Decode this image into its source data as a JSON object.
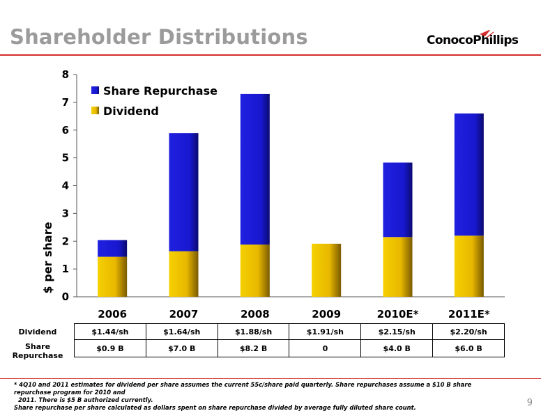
{
  "header": {
    "title": "Shareholder Distributions",
    "logo_text": "ConocoPhillips"
  },
  "chart_data": {
    "type": "bar",
    "stacked": true,
    "categories": [
      "2006",
      "2007",
      "2008",
      "2009",
      "2010E*",
      "2011E*"
    ],
    "series": [
      {
        "name": "Dividend",
        "values": [
          1.44,
          1.64,
          1.88,
          1.91,
          2.15,
          2.2
        ],
        "color": "#e8b800"
      },
      {
        "name": "Share Repurchase",
        "values": [
          0.6,
          4.25,
          5.42,
          0,
          2.68,
          4.4
        ],
        "color": "#1a1ad8"
      }
    ],
    "ylabel": "$ per share",
    "ylim": [
      0,
      8
    ],
    "yticks": [
      0,
      1,
      2,
      3,
      4,
      5,
      6,
      7,
      8
    ],
    "legend": {
      "placement": "top-left",
      "entries": [
        "Share Repurchase",
        "Dividend"
      ]
    },
    "grid": false
  },
  "table": {
    "rows": [
      {
        "label": "Dividend",
        "cells": [
          "$1.44/sh",
          "$1.64/sh",
          "$1.88/sh",
          "$1.91/sh",
          "$2.15/sh",
          "$2.20/sh"
        ]
      },
      {
        "label_line1": "Share",
        "label_line2": "Repurchase",
        "cells": [
          "$0.9 B",
          "$7.0 B",
          "$8.2 B",
          "0",
          "$4.0 B",
          "$6.0 B"
        ]
      }
    ]
  },
  "footnote": {
    "line1": "* 4Q10 and 2011 estimates for dividend per share assumes the current 55c/share paid quarterly. Share repurchases assume a $10 B share repurchase program for 2010 and",
    "line2": "2011.  There is $5 B authorized currently.",
    "line3": "Share repurchase per share calculated as dollars spent on share repurchase divided by average fully diluted share count."
  },
  "page_number": "9"
}
